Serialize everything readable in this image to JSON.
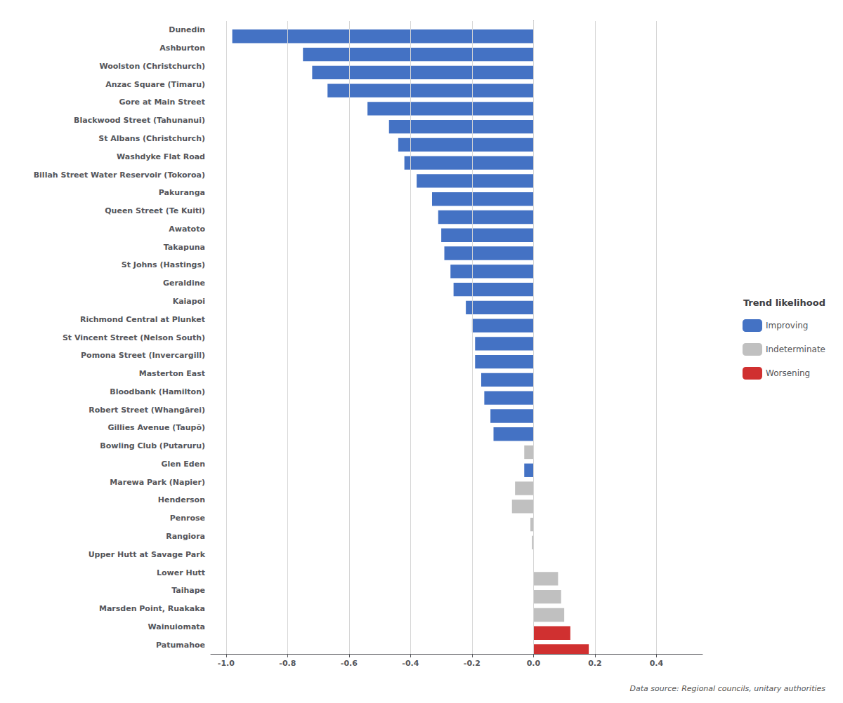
{
  "chart_data": {
    "type": "bar",
    "orientation": "horizontal",
    "categories": [
      "Dunedin",
      "Ashburton",
      "Woolston (Christchurch)",
      "Anzac Square (Timaru)",
      "Gore at Main Street",
      "Blackwood Street (Tahunanui)",
      "St Albans (Christchurch)",
      "Washdyke Flat Road",
      "Billah Street Water Reservoir (Tokoroa)",
      "Pakuranga",
      "Queen Street (Te Kuiti)",
      "Awatoto",
      "Takapuna",
      "St Johns (Hastings)",
      "Geraldine",
      "Kaiapoi",
      "Richmond Central at Plunket",
      "St Vincent Street (Nelson South)",
      "Pomona Street (Invercargill)",
      "Masterton East",
      "Bloodbank (Hamilton)",
      "Robert Street (Whangārei)",
      "Gillies Avenue (Taupō)",
      "Bowling Club (Putaruru)",
      "Glen Eden",
      "Marewa Park (Napier)",
      "Henderson",
      "Penrose",
      "Rangiora",
      "Upper Hutt at Savage Park",
      "Lower Hutt",
      "Taihape",
      "Marsden Point, Ruakaka",
      "Wainuiomata",
      "Patumahoe"
    ],
    "values": [
      -0.98,
      -0.75,
      -0.72,
      -0.67,
      -0.54,
      -0.47,
      -0.44,
      -0.42,
      -0.38,
      -0.33,
      -0.31,
      -0.3,
      -0.29,
      -0.27,
      -0.26,
      -0.22,
      -0.2,
      -0.19,
      -0.19,
      -0.17,
      -0.16,
      -0.14,
      -0.13,
      -0.03,
      -0.03,
      -0.06,
      -0.07,
      -0.01,
      -0.005,
      0.0,
      0.08,
      0.09,
      0.1,
      0.12,
      0.18
    ],
    "colors": [
      "#4472C4",
      "#4472C4",
      "#4472C4",
      "#4472C4",
      "#4472C4",
      "#4472C4",
      "#4472C4",
      "#4472C4",
      "#4472C4",
      "#4472C4",
      "#4472C4",
      "#4472C4",
      "#4472C4",
      "#4472C4",
      "#4472C4",
      "#4472C4",
      "#4472C4",
      "#4472C4",
      "#4472C4",
      "#4472C4",
      "#4472C4",
      "#4472C4",
      "#4472C4",
      "#C0C0C0",
      "#4472C4",
      "#C0C0C0",
      "#C0C0C0",
      "#C0C0C0",
      "#C0C0C0",
      "#C0C0C0",
      "#C0C0C0",
      "#C0C0C0",
      "#C0C0C0",
      "#D03030",
      "#D03030"
    ],
    "xlim": [
      -1.05,
      0.55
    ],
    "xticks": [
      {
        "value": -1.0,
        "label": "-1.0"
      },
      -0.8,
      -0.6,
      -0.4,
      -0.2,
      {
        "value": 0.0,
        "label": "0.0"
      },
      0.2,
      0.4
    ],
    "grid": true,
    "legend": "right",
    "legend_title": "Trend likelihood",
    "legend_items": [
      {
        "name": "Improving",
        "color": "#4472C4"
      },
      {
        "name": "Indeterminate",
        "color": "#C0C0C0"
      },
      {
        "name": "Worsening",
        "color": "#D03030"
      }
    ],
    "annotations": [
      "Data source: Regional councils, unitary authorities"
    ]
  }
}
